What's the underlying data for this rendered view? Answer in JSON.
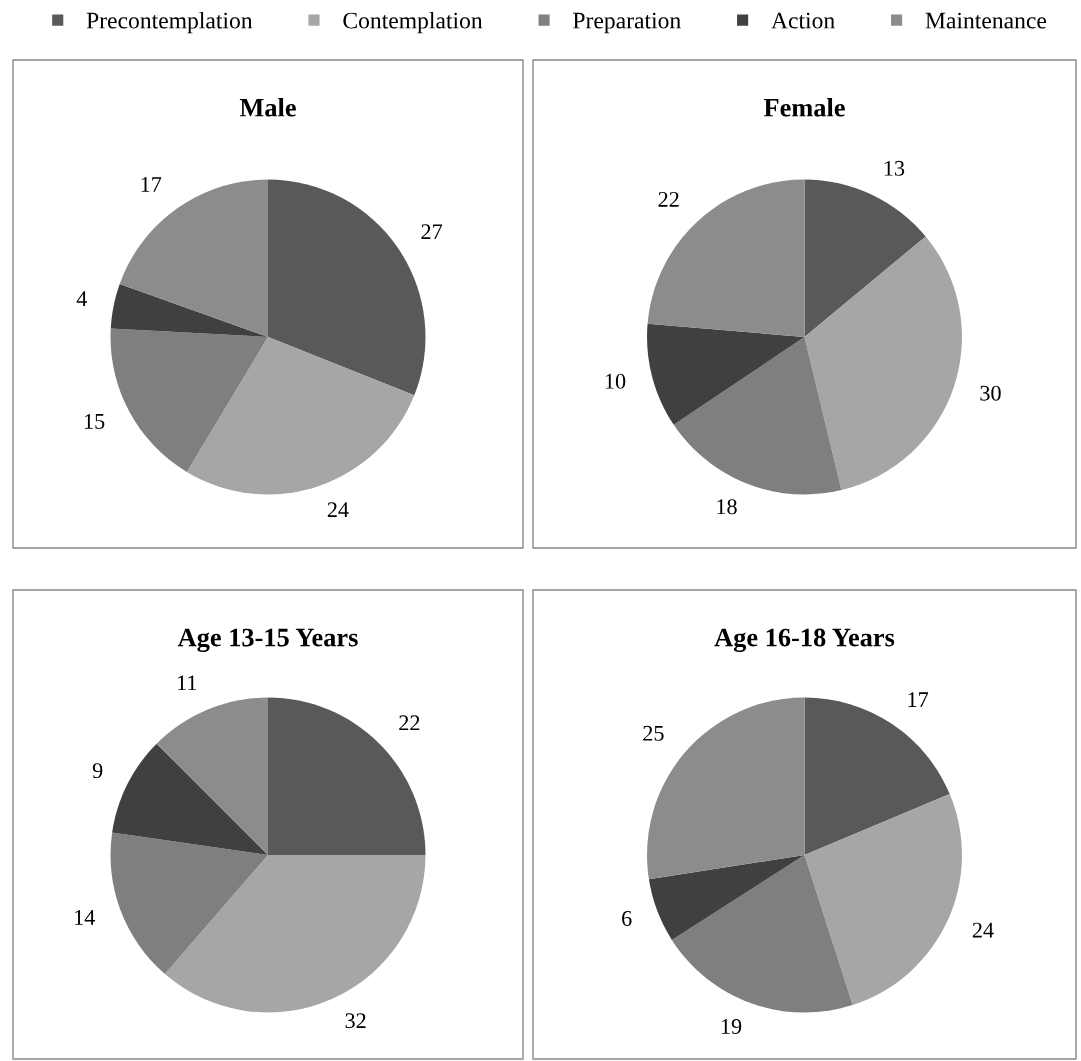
{
  "chart_data": [
    {
      "type": "pie",
      "title": "Male",
      "categories": [
        "Precontemplation",
        "Contemplation",
        "Preparation",
        "Action",
        "Maintenance"
      ],
      "values": [
        27,
        24,
        15,
        4,
        17
      ],
      "colors": [
        "#595959",
        "#a6a6a6",
        "#7f7f7f",
        "#404040",
        "#8c8c8c"
      ],
      "data_labels": true,
      "legend": "top"
    },
    {
      "type": "pie",
      "title": "Female",
      "categories": [
        null,
        null,
        null,
        null,
        null
      ],
      "values": [
        13,
        30,
        18,
        10,
        22
      ],
      "colors": [
        "#595959",
        "#a6a6a6",
        "#7f7f7f",
        "#404040",
        "#8c8c8c"
      ],
      "data_labels": true
    },
    {
      "type": "pie",
      "title": "Age 13-15 Years",
      "categories": [
        null,
        null,
        null,
        null,
        null
      ],
      "values": [
        22,
        32,
        14,
        9,
        11
      ],
      "colors": [
        "#595959",
        "#a6a6a6",
        "#7f7f7f",
        "#404040",
        "#8c8c8c"
      ],
      "data_labels": true
    },
    {
      "type": "pie",
      "title": "Age 16-18 Years",
      "categories": [
        null,
        null,
        null,
        null,
        null
      ],
      "values": [
        17,
        24,
        19,
        6,
        25
      ],
      "colors": [
        "#595959",
        "#a6a6a6",
        "#7f7f7f",
        "#404040",
        "#8c8c8c"
      ],
      "data_labels": true
    }
  ]
}
